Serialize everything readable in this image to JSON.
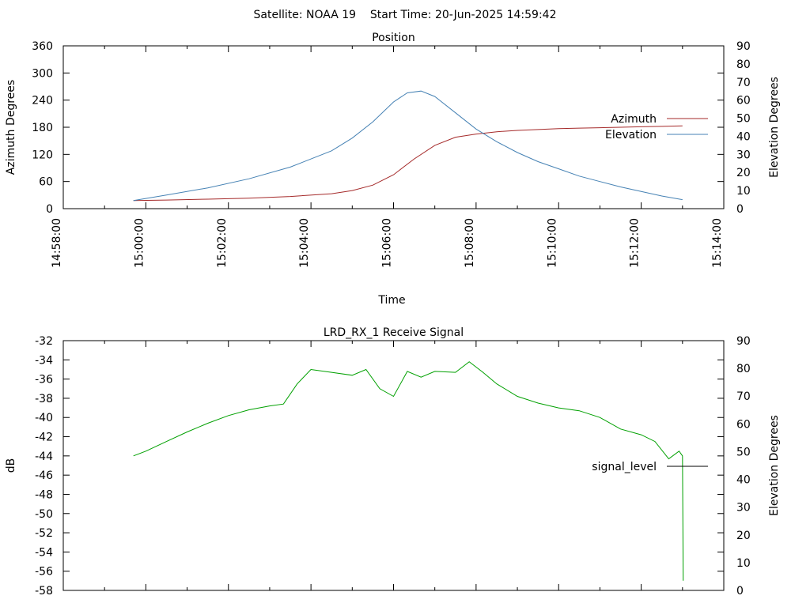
{
  "header": {
    "title": "Satellite: NOAA 19    Start Time: 20-Jun-2025 14:59:42"
  },
  "chart_data": [
    {
      "type": "line",
      "title": "Position",
      "xlabel": "Time",
      "ylabel": "Azimuth Degrees",
      "y2label": "Elevation Degrees",
      "xlim": [
        "14:58:00",
        "15:14:00"
      ],
      "x_ticks": [
        "14:58:00",
        "15:00:00",
        "15:02:00",
        "15:04:00",
        "15:06:00",
        "15:08:00",
        "15:10:00",
        "15:12:00",
        "15:14:00"
      ],
      "ylim": [
        0,
        360
      ],
      "y_ticks": [
        "0",
        "60",
        "120",
        "180",
        "240",
        "300",
        "360"
      ],
      "y2lim": [
        0,
        90
      ],
      "y2_ticks": [
        "0",
        "10",
        "20",
        "30",
        "40",
        "50",
        "60",
        "70",
        "80",
        "90"
      ],
      "grid": false,
      "legend_position": "right",
      "colors": {
        "azimuth": "#a52a2a",
        "elevation": "#4682b4"
      },
      "series": [
        {
          "name": "Azimuth",
          "axis": "y",
          "x": [
            "14:59:42",
            "15:00:30",
            "15:01:30",
            "15:02:30",
            "15:03:30",
            "15:04:30",
            "15:05:00",
            "15:05:30",
            "15:06:00",
            "15:06:30",
            "15:07:00",
            "15:07:30",
            "15:08:00",
            "15:08:30",
            "15:09:00",
            "15:09:30",
            "15:10:00",
            "15:10:30",
            "15:11:00",
            "15:11:30",
            "15:12:00",
            "15:12:30",
            "15:13:00"
          ],
          "values": [
            18,
            19,
            21,
            23,
            27,
            33,
            40,
            52,
            75,
            110,
            140,
            158,
            165,
            170,
            173,
            175,
            177,
            178,
            179,
            180,
            181,
            182,
            183
          ]
        },
        {
          "name": "Elevation",
          "axis": "y2",
          "x": [
            "14:59:42",
            "15:00:30",
            "15:01:30",
            "15:02:30",
            "15:03:30",
            "15:04:30",
            "15:05:00",
            "15:05:30",
            "15:06:00",
            "15:06:20",
            "15:06:40",
            "15:07:00",
            "15:07:30",
            "15:08:00",
            "15:08:30",
            "15:09:00",
            "15:09:30",
            "15:10:00",
            "15:10:30",
            "15:11:00",
            "15:11:30",
            "15:12:00",
            "15:12:30",
            "15:13:00"
          ],
          "values": [
            4.5,
            7.5,
            11.5,
            16.5,
            23,
            32,
            39,
            48,
            59,
            64,
            65,
            62,
            53,
            44,
            37,
            31,
            26,
            22,
            18,
            15,
            12,
            9.5,
            7,
            5
          ]
        }
      ]
    },
    {
      "type": "line",
      "title": "LRD_RX_1 Receive Signal",
      "ylabel": "dB",
      "y2label": "Elevation Degrees",
      "xlim": [
        "14:58:00",
        "15:14:00"
      ],
      "ylim": [
        -58,
        -32
      ],
      "y_ticks": [
        "-32",
        "-34",
        "-36",
        "-38",
        "-40",
        "-42",
        "-44",
        "-46",
        "-48",
        "-50",
        "-52",
        "-54",
        "-56",
        "-58"
      ],
      "y2lim": [
        0,
        90
      ],
      "y2_ticks": [
        "0",
        "10",
        "20",
        "30",
        "40",
        "50",
        "60",
        "70",
        "80",
        "90"
      ],
      "grid": false,
      "legend_position": "right",
      "colors": {
        "signal_level": "#00a000"
      },
      "series": [
        {
          "name": "signal_level",
          "axis": "y",
          "x": [
            "14:59:42",
            "15:00:00",
            "15:00:30",
            "15:01:00",
            "15:01:30",
            "15:02:00",
            "15:02:30",
            "15:03:00",
            "15:03:20",
            "15:03:40",
            "15:04:00",
            "15:04:30",
            "15:05:00",
            "15:05:20",
            "15:05:40",
            "15:06:00",
            "15:06:20",
            "15:06:40",
            "15:07:00",
            "15:07:30",
            "15:07:50",
            "15:08:10",
            "15:08:30",
            "15:09:00",
            "15:09:30",
            "15:10:00",
            "15:10:30",
            "15:11:00",
            "15:11:30",
            "15:12:00",
            "15:12:20",
            "15:12:40",
            "15:12:55",
            "15:13:00",
            "15:13:01"
          ],
          "values": [
            -44.0,
            -43.5,
            -42.5,
            -41.5,
            -40.6,
            -39.8,
            -39.2,
            -38.8,
            -38.6,
            -36.5,
            -35.0,
            -35.3,
            -35.6,
            -35.0,
            -37.0,
            -37.8,
            -35.2,
            -35.8,
            -35.2,
            -35.3,
            -34.2,
            -35.3,
            -36.5,
            -37.8,
            -38.5,
            -39.0,
            -39.3,
            -40.0,
            -41.2,
            -41.8,
            -42.5,
            -44.3,
            -43.5,
            -44.0,
            -57.0
          ]
        }
      ]
    }
  ]
}
